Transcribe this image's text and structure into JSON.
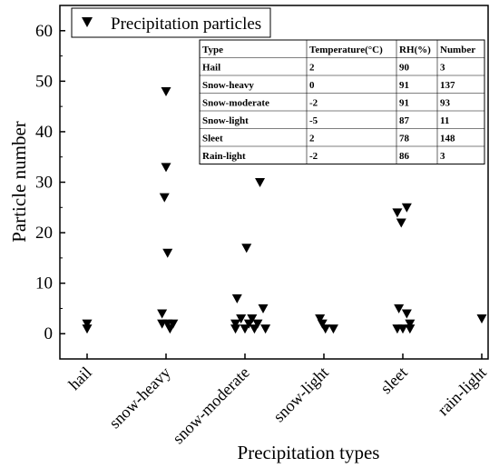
{
  "chart_data": {
    "type": "scatter",
    "xlabel": "Precipitation types",
    "ylabel": "Particle number",
    "categories": [
      "hail",
      "snow-heavy",
      "snow-moderate",
      "snow-light",
      "sleet",
      "rain-light"
    ],
    "ylim": [
      -5,
      65
    ],
    "yticks": [
      0,
      10,
      20,
      30,
      40,
      50,
      60
    ],
    "grid": false,
    "legend_position": "top-left",
    "marker": "downward-triangle",
    "marker_color": "#000000",
    "series": [
      {
        "name": "Precipitation particles",
        "points": [
          {
            "x": "hail",
            "dx": 0.0,
            "y": 2
          },
          {
            "x": "hail",
            "dx": 0.0,
            "y": 1
          },
          {
            "x": "snow-heavy",
            "dx": 0.0,
            "y": 48
          },
          {
            "x": "snow-heavy",
            "dx": 0.0,
            "y": 33
          },
          {
            "x": "snow-heavy",
            "dx": -0.02,
            "y": 27
          },
          {
            "x": "snow-heavy",
            "dx": 0.02,
            "y": 16
          },
          {
            "x": "snow-heavy",
            "dx": -0.05,
            "y": 4
          },
          {
            "x": "snow-heavy",
            "dx": -0.05,
            "y": 2
          },
          {
            "x": "snow-heavy",
            "dx": 0.02,
            "y": 2
          },
          {
            "x": "snow-heavy",
            "dx": 0.09,
            "y": 2
          },
          {
            "x": "snow-heavy",
            "dx": 0.05,
            "y": 1
          },
          {
            "x": "snow-moderate",
            "dx": 0.19,
            "y": 30
          },
          {
            "x": "snow-moderate",
            "dx": 0.02,
            "y": 17
          },
          {
            "x": "snow-moderate",
            "dx": -0.1,
            "y": 7
          },
          {
            "x": "snow-moderate",
            "dx": 0.23,
            "y": 5
          },
          {
            "x": "snow-moderate",
            "dx": -0.05,
            "y": 3
          },
          {
            "x": "snow-moderate",
            "dx": 0.09,
            "y": 3
          },
          {
            "x": "snow-moderate",
            "dx": -0.12,
            "y": 2
          },
          {
            "x": "snow-moderate",
            "dx": 0.05,
            "y": 2
          },
          {
            "x": "snow-moderate",
            "dx": 0.16,
            "y": 2
          },
          {
            "x": "snow-moderate",
            "dx": -0.12,
            "y": 1
          },
          {
            "x": "snow-moderate",
            "dx": 0.0,
            "y": 1
          },
          {
            "x": "snow-moderate",
            "dx": 0.12,
            "y": 1
          },
          {
            "x": "snow-moderate",
            "dx": 0.26,
            "y": 1
          },
          {
            "x": "snow-light",
            "dx": -0.05,
            "y": 3
          },
          {
            "x": "snow-light",
            "dx": -0.02,
            "y": 2
          },
          {
            "x": "snow-light",
            "dx": 0.02,
            "y": 1
          },
          {
            "x": "snow-light",
            "dx": 0.12,
            "y": 1
          },
          {
            "x": "sleet",
            "dx": -0.07,
            "y": 24
          },
          {
            "x": "sleet",
            "dx": 0.05,
            "y": 25
          },
          {
            "x": "sleet",
            "dx": -0.02,
            "y": 22
          },
          {
            "x": "sleet",
            "dx": -0.05,
            "y": 5
          },
          {
            "x": "sleet",
            "dx": 0.05,
            "y": 4
          },
          {
            "x": "sleet",
            "dx": 0.09,
            "y": 2
          },
          {
            "x": "sleet",
            "dx": -0.07,
            "y": 1
          },
          {
            "x": "sleet",
            "dx": 0.0,
            "y": 1
          },
          {
            "x": "sleet",
            "dx": 0.09,
            "y": 1
          },
          {
            "x": "rain-light",
            "dx": 0.0,
            "y": 3
          }
        ]
      }
    ],
    "inset_table": {
      "headers": [
        "Type",
        "Temperature(°C)",
        "RH(%)",
        "Number"
      ],
      "rows": [
        [
          "Hail",
          "2",
          "90",
          "3"
        ],
        [
          "Snow-heavy",
          "0",
          "91",
          "137"
        ],
        [
          "Snow-moderate",
          "-2",
          "91",
          "93"
        ],
        [
          "Snow-light",
          "-5",
          "87",
          "11"
        ],
        [
          "Sleet",
          "2",
          "78",
          "148"
        ],
        [
          "Rain-light",
          "-2",
          "86",
          "3"
        ]
      ]
    }
  }
}
